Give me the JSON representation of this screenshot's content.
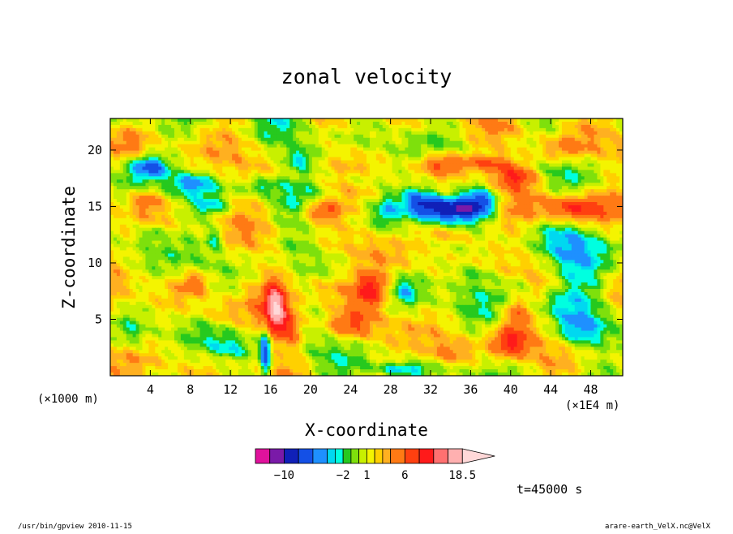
{
  "chart_data": {
    "type": "heatmap",
    "title": "zonal velocity",
    "xlabel": "X-coordinate",
    "ylabel": "Z-coordinate",
    "x_unit": "(×1E4 m)",
    "y_unit": "(×1000 m)",
    "x_ticks": [
      "4",
      "8",
      "12",
      "16",
      "20",
      "24",
      "28",
      "32",
      "36",
      "40",
      "44",
      "48"
    ],
    "y_ticks": [
      "5",
      "10",
      "15",
      "20"
    ],
    "xlim": [
      0,
      51.2
    ],
    "ylim": [
      0,
      22.8
    ],
    "time_label": "t=45000 s",
    "colorbar": {
      "levels": [
        -14,
        -12,
        -10,
        -8,
        -6,
        -4,
        -3,
        -2,
        -1,
        0,
        1,
        2,
        3,
        4,
        6,
        8,
        10,
        12.5,
        15,
        18.5
      ],
      "labels": [
        "−10",
        "−2",
        "1",
        "6",
        "18.5"
      ],
      "label_values": [
        -10,
        -2,
        1,
        6,
        18.5
      ],
      "colors": [
        "#e0129c",
        "#7a1aa8",
        "#1020b8",
        "#1450e6",
        "#1e90ff",
        "#00d8f0",
        "#00ffe0",
        "#26c91e",
        "#7ee00c",
        "#c8f000",
        "#f4f400",
        "#ffd000",
        "#ffb020",
        "#ff7a14",
        "#ff4010",
        "#ff1a1a",
        "#ff7070",
        "#ffb0b0",
        "#ffd8d8"
      ]
    }
  },
  "footer": {
    "left": "/usr/bin/gpview  2010-11-15",
    "right": "arare-earth_VelX.nc@VelX"
  }
}
